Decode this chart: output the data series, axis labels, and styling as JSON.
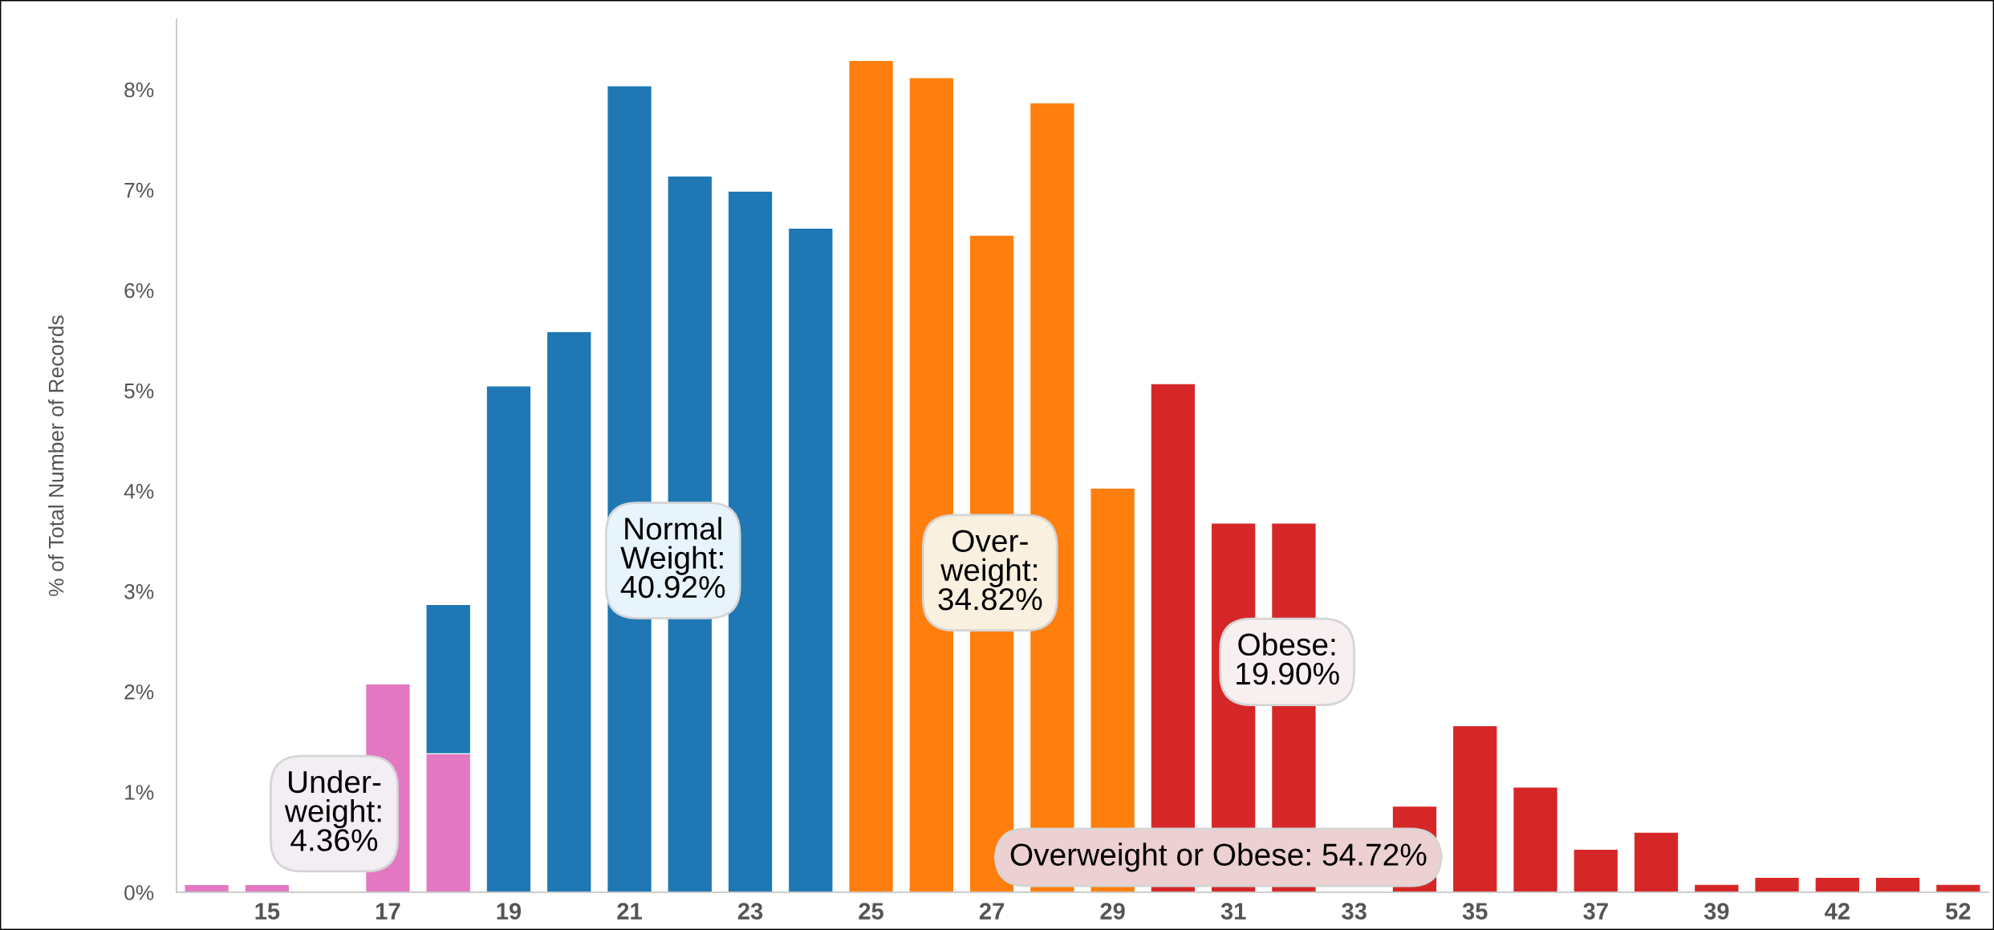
{
  "chart_data": {
    "type": "bar",
    "stacked": true,
    "ylabel": "% of Total Number of Records",
    "categories": [
      null,
      "15",
      null,
      "17",
      null,
      "19",
      null,
      "21",
      null,
      "23",
      null,
      "25",
      null,
      "27",
      null,
      "29",
      null,
      "31",
      null,
      "33",
      null,
      "35",
      null,
      "37",
      null,
      "39",
      null,
      "42",
      null,
      "52"
    ],
    "series": [
      {
        "color": "#e377c2",
        "values": [
          0.08,
          0.08,
          null,
          2.08,
          1.38,
          null,
          null,
          null,
          null,
          null,
          null,
          null,
          null,
          null,
          null,
          null,
          null,
          null,
          null,
          null,
          null,
          null,
          null,
          null,
          null,
          null,
          null,
          null,
          null,
          null
        ]
      },
      {
        "color": "#1f77b4",
        "values": [
          null,
          null,
          null,
          null,
          1.49,
          5.05,
          5.59,
          8.04,
          7.14,
          6.99,
          6.62,
          null,
          null,
          null,
          null,
          null,
          null,
          null,
          null,
          null,
          null,
          null,
          null,
          null,
          null,
          null,
          null,
          null,
          null,
          null
        ]
      },
      {
        "color": "#ff7f0e",
        "values": [
          null,
          null,
          null,
          null,
          null,
          null,
          null,
          null,
          null,
          null,
          null,
          8.29,
          8.12,
          6.55,
          7.87,
          4.03,
          null,
          null,
          null,
          null,
          null,
          null,
          null,
          null,
          null,
          null,
          null,
          null,
          null,
          null
        ]
      },
      {
        "color": "#d62728",
        "values": [
          null,
          null,
          null,
          null,
          null,
          null,
          null,
          null,
          null,
          null,
          null,
          null,
          null,
          null,
          null,
          null,
          5.07,
          3.68,
          3.68,
          null,
          0.86,
          1.66,
          1.05,
          0.43,
          0.6,
          0.08,
          0.15,
          0.15,
          0.15,
          0.08
        ]
      }
    ],
    "ylim": [
      0,
      8.7
    ],
    "yticks": [
      {
        "value": 0,
        "label": "0%"
      },
      {
        "value": 1,
        "label": "1%"
      },
      {
        "value": 2,
        "label": "2%"
      },
      {
        "value": 3,
        "label": "3%"
      },
      {
        "value": 4,
        "label": "4%"
      },
      {
        "value": 5,
        "label": "5%"
      },
      {
        "value": 6,
        "label": "6%"
      },
      {
        "value": 7,
        "label": "7%"
      },
      {
        "value": 8,
        "label": "8%"
      }
    ],
    "grid": false,
    "legend": false,
    "annotations": [
      "Under-\nweight:\n4.36%",
      "Normal\nWeight:\n40.92%",
      "Over-\nweight:\n34.82%",
      "Obese:\n19.90%",
      "Overweight or Obese: 54.72%"
    ]
  }
}
